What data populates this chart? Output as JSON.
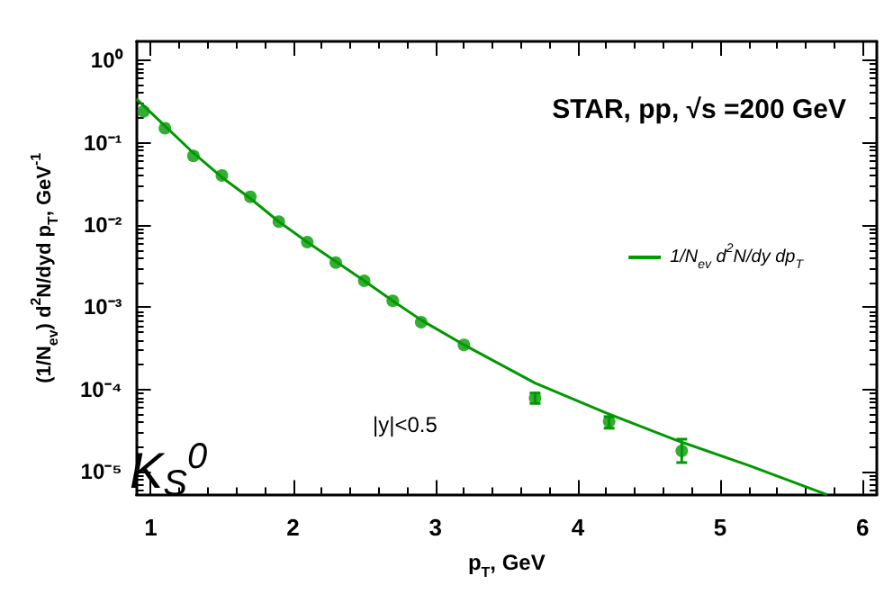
{
  "chart_data": {
    "type": "scatter",
    "title": "STAR, pp, √s =200 GeV",
    "xlabel": "p$_{T}$, GeV",
    "ylabel": "(1/N$_{ev}$) d$^{2}$N/dyd p$_{T}$, GeV$^{-1}$",
    "annotations": [
      "|y|<0.5",
      "K$_{S}$$^{0}$"
    ],
    "log": "y",
    "grid": false,
    "legend": "right",
    "marker": "circle",
    "xlim": [
      0.9,
      6.1
    ],
    "xticks": [
      1,
      2,
      3,
      4,
      5,
      6
    ],
    "ylim": [
      5.3e-06,
      1.7
    ],
    "yticks": [
      {
        "value": 1e-05,
        "label": "10⁻⁵"
      },
      {
        "value": 0.0001,
        "label": "10⁻⁴"
      },
      {
        "value": 0.001,
        "label": "10⁻³"
      },
      {
        "value": 0.01,
        "label": "10⁻²"
      },
      {
        "value": 0.1,
        "label": "10⁻¹"
      },
      {
        "value": 1,
        "label": "10⁰"
      }
    ],
    "series": [
      {
        "color": "#009900",
        "x": [
          0.95,
          1.1,
          1.3,
          1.5,
          1.7,
          1.9,
          2.1,
          2.3,
          2.5,
          2.7,
          2.9,
          3.2,
          3.7,
          4.22,
          4.73
        ],
        "values": [
          0.24,
          0.15,
          0.069,
          0.04,
          0.022,
          0.011,
          0.0062,
          0.0035,
          0.0021,
          0.0012,
          0.00066,
          0.00035,
          7.9e-05,
          4.1e-05,
          1.8e-05
        ],
        "errors": [
          null,
          null,
          null,
          null,
          null,
          null,
          null,
          null,
          null,
          null,
          null,
          null,
          [
            6.8e-05,
            9.1e-05
          ],
          [
            3.4e-05,
            4.7e-05
          ],
          [
            1.3e-05,
            2.5e-05
          ]
        ]
      },
      {
        "type": "line",
        "name": "1/N$_{ev}$ d$^{2}$N/dy dp$_{T}$",
        "color": "#009900",
        "marker": "none",
        "line_style": "solid",
        "x": [
          0.9,
          1.1,
          1.3,
          1.5,
          1.7,
          1.9,
          2.1,
          2.3,
          2.5,
          2.7,
          2.9,
          3.2,
          3.7,
          4.2,
          4.7,
          5.2,
          5.75
        ],
        "values": [
          0.34,
          0.16,
          0.075,
          0.038,
          0.021,
          0.011,
          0.0062,
          0.0036,
          0.0021,
          0.0012,
          0.0007,
          0.00035,
          0.00012,
          5.2e-05,
          2.4e-05,
          1.2e-05,
          5.3e-06
        ]
      }
    ]
  }
}
